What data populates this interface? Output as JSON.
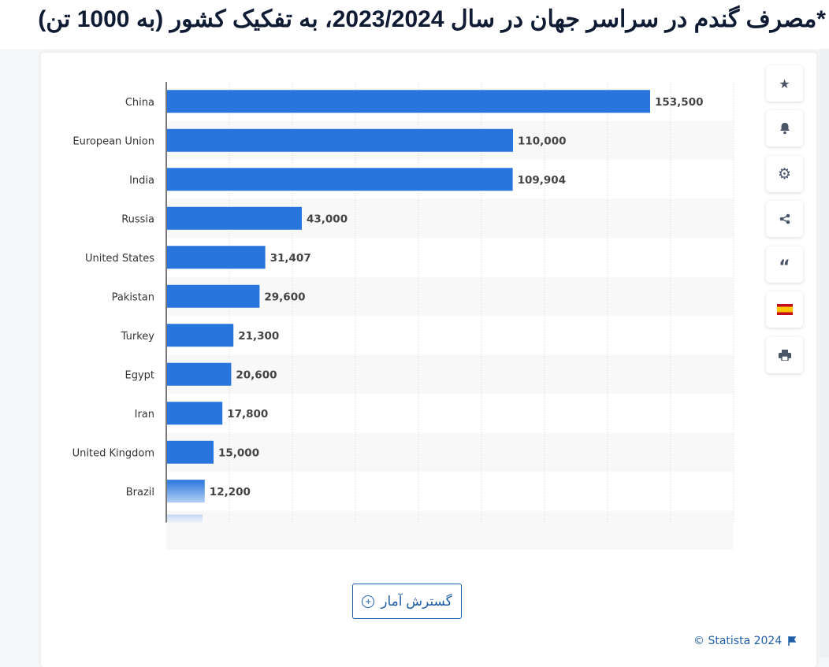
{
  "title": "*مصرف گندم در سراسر جهان در سال 2023/2024، به تفکیک کشور (به 1000 تن)",
  "chart_data": {
    "type": "bar",
    "orientation": "horizontal",
    "title": "*مصرف گندم در سراسر جهان در سال 2023/2024، به تفکیک کشور (به 1000 تن)",
    "categories": [
      "China",
      "European Union",
      "India",
      "Russia",
      "United States",
      "Pakistan",
      "Turkey",
      "Egypt",
      "Iran",
      "United Kingdom",
      "Brazil"
    ],
    "values": [
      153500,
      110000,
      109904,
      43000,
      31407,
      29600,
      21300,
      20600,
      17800,
      15000,
      12200
    ],
    "value_labels": [
      "153,500",
      "110,000",
      "109,904",
      "43,000",
      "31,407",
      "29,600",
      "21,300",
      "20,600",
      "17,800",
      "15,000",
      "12,200"
    ],
    "xlim": [
      0,
      180000
    ],
    "grid": true,
    "grid_step": 20000,
    "bar_color": "#2876dd",
    "xlabel": "",
    "ylabel": ""
  },
  "sidebar": {
    "icons": [
      "star-icon",
      "bell-icon",
      "gear-icon",
      "share-icon",
      "quote-icon",
      "spain-flag-icon",
      "print-icon"
    ]
  },
  "expand_button": {
    "label": "گسترش آمار"
  },
  "credit": {
    "text": "© Statista 2024"
  },
  "colors": {
    "accent": "#1f5fa8",
    "bar": "#2876dd",
    "title": "#0f1b33"
  }
}
